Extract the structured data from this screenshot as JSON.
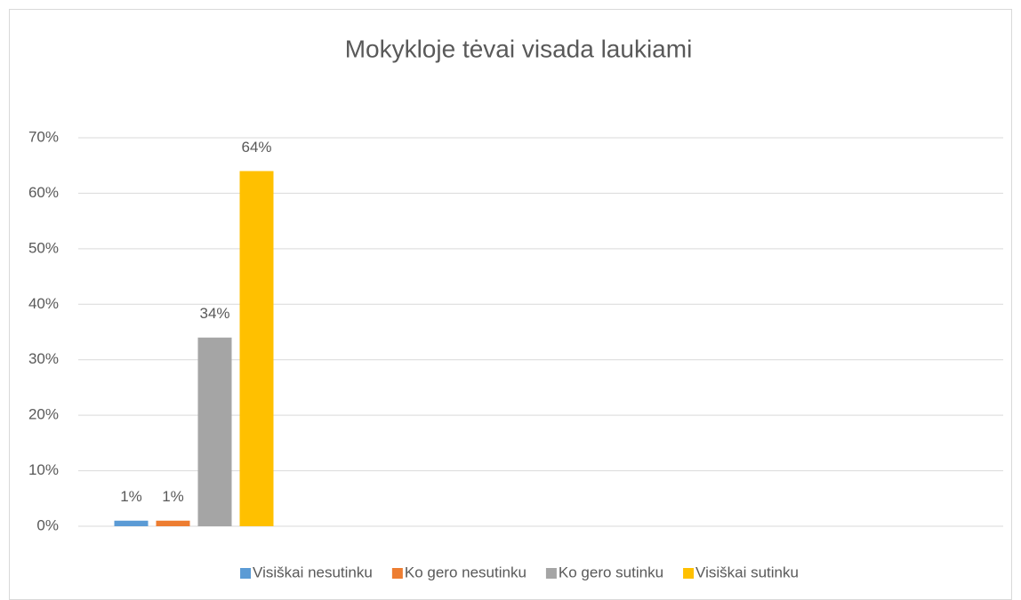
{
  "chart_data": {
    "type": "bar",
    "title": "Mokykloje tėvai visada laukiami",
    "categories": [
      null,
      null,
      null,
      null
    ],
    "series": [
      {
        "name": "Visiškai nesutinku",
        "color": "#5b9bd5",
        "values": [
          1,
          null,
          null,
          null
        ],
        "value_labels": [
          "1%",
          null,
          null,
          null
        ]
      },
      {
        "name": "Ko gero nesutinku",
        "color": "#ed7d31",
        "values": [
          1,
          null,
          null,
          null
        ],
        "value_labels": [
          "1%",
          null,
          null,
          null
        ]
      },
      {
        "name": "Ko gero sutinku",
        "color": "#a5a5a5",
        "values": [
          34,
          null,
          null,
          null
        ],
        "value_labels": [
          "34%",
          null,
          null,
          null
        ]
      },
      {
        "name": "Visiškai sutinku",
        "color": "#ffc000",
        "values": [
          64,
          null,
          null,
          null
        ],
        "value_labels": [
          "64%",
          null,
          null,
          null
        ]
      }
    ],
    "ylim": [
      0,
      70
    ],
    "yticks": [
      {
        "value": 0,
        "label": "0%"
      },
      {
        "value": 10,
        "label": "10%"
      },
      {
        "value": 20,
        "label": "20%"
      },
      {
        "value": 30,
        "label": "30%"
      },
      {
        "value": 40,
        "label": "40%"
      },
      {
        "value": 50,
        "label": "50%"
      },
      {
        "value": 60,
        "label": "60%"
      },
      {
        "value": 70,
        "label": "70%"
      }
    ],
    "grid": true,
    "legend": "bottom"
  }
}
